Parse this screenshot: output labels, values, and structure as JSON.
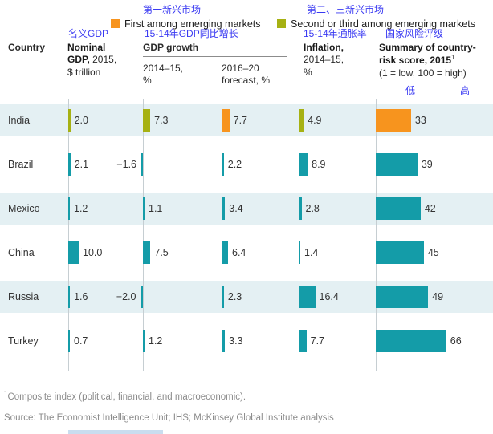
{
  "legend": {
    "items": [
      {
        "cn": "第一新兴市场",
        "label": "First among emerging markets",
        "color_key": "orange"
      },
      {
        "cn": "第二、三新兴市场",
        "label": "Second or third among emerging markets",
        "color_key": "olive"
      }
    ]
  },
  "annotations": {
    "nominal_gdp_cn": "名义GDP",
    "gdp_growth_cn": "15-14年GDP同比增长",
    "inflation_cn": "15-14年通胀率",
    "risk_cn": "国家风险评级",
    "low_cn": "低",
    "high_cn": "高"
  },
  "header": {
    "country": "Country",
    "col_gdp_bold": "Nominal GDP,",
    "col_gdp_rest": " 2015, $ trillion",
    "col_growth_bold": "GDP growth",
    "sub_growth": "2014–15, %",
    "sub_forecast": "2016–20 forecast, %",
    "col_inflation_bold": "Inflation,",
    "col_inflation_rest": " 2014–15, %",
    "col_risk_bold": "Summary of country-risk score,",
    "col_risk_year": " 2015",
    "col_risk_sup": "1",
    "col_risk_scale": "(1 = low, 100 = high)"
  },
  "colors": {
    "orange": "#F7941E",
    "olive": "#A6B113",
    "teal": "#149CA8",
    "band": "#E4F0F3",
    "annotation_blue": "#3939F2",
    "gridline": "#C6CED2",
    "bottom_strip": "#C9DDEF"
  },
  "chart_data": {
    "type": "bar",
    "orientation": "horizontal",
    "columns": [
      "Nominal GDP, 2015, $ trillion",
      "GDP growth 2014–15, %",
      "GDP growth 2016–20 forecast, %",
      "Inflation, 2014–15, %",
      "Summary of country-risk score, 2015 (1 = low, 100 = high)"
    ],
    "legend_note": "orange = first among emerging markets; olive = second or third among emerging markets; teal = other",
    "rows": [
      {
        "country": "India",
        "gdp": 2.0,
        "growth": 7.3,
        "forecast": 7.7,
        "inflation": 4.9,
        "risk": 33,
        "colors": {
          "gdp": "olive",
          "growth": "olive",
          "forecast": "orange",
          "inflation": "olive",
          "risk": "orange"
        }
      },
      {
        "country": "Brazil",
        "gdp": 2.1,
        "growth": -1.6,
        "forecast": 2.2,
        "inflation": 8.9,
        "risk": 39
      },
      {
        "country": "Mexico",
        "gdp": 1.2,
        "growth": 1.1,
        "forecast": 3.4,
        "inflation": 2.8,
        "risk": 42
      },
      {
        "country": "China",
        "gdp": 10.0,
        "growth": 7.5,
        "forecast": 6.4,
        "inflation": 1.4,
        "risk": 45
      },
      {
        "country": "Russia",
        "gdp": 1.6,
        "growth": -2.0,
        "forecast": 2.3,
        "inflation": 16.4,
        "risk": 49
      },
      {
        "country": "Turkey",
        "gdp": 0.7,
        "growth": 1.2,
        "forecast": 3.3,
        "inflation": 7.7,
        "risk": 66
      }
    ]
  },
  "footnote": {
    "sup": "1",
    "text": "Composite index (political, financial, and macroeconomic)."
  },
  "source": "Source: The Economist Intelligence Unit; IHS; McKinsey Global Institute analysis"
}
